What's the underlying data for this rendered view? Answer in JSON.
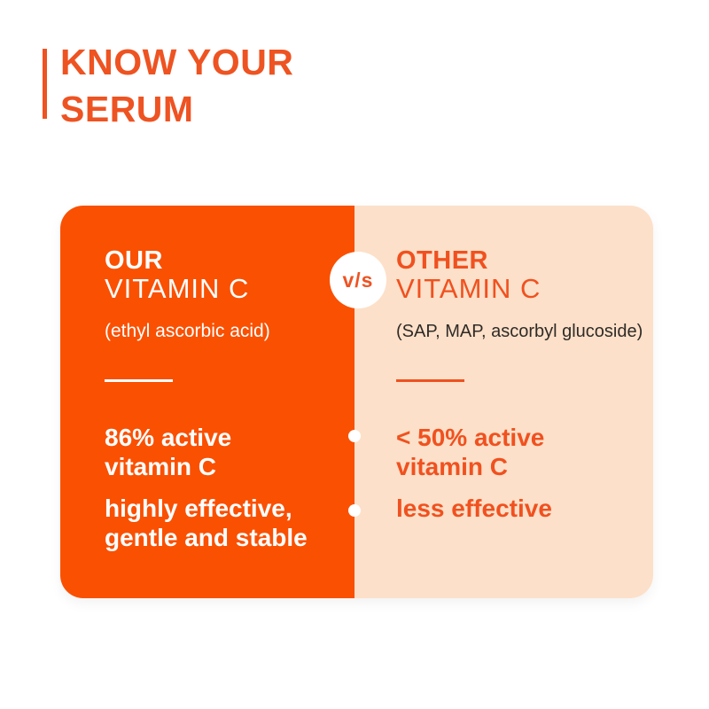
{
  "title": {
    "line1": "KNOW YOUR",
    "line2": "SERUM"
  },
  "versus_badge": "v/s",
  "comparison": {
    "left": {
      "name": "OUR",
      "type": "VITAMIN C",
      "ingredients": "(ethyl ascorbic acid)",
      "points": [
        "86% active\nvitamin C",
        "highly effective,\ngentle and stable"
      ]
    },
    "right": {
      "name": "OTHER",
      "type": "VITAMIN C",
      "ingredients": "(SAP, MAP, ascorbyl glucoside)",
      "points": [
        "< 50% active\nvitamin C",
        "less effective"
      ]
    }
  },
  "colors": {
    "title_orange": "#EE5322",
    "panel_orange": "#FA5001",
    "panel_peach": "#FDE0C9",
    "text_orange": "#F0511F",
    "ingredients_dark": "#2F2B27",
    "white": "#FFFFFF"
  }
}
